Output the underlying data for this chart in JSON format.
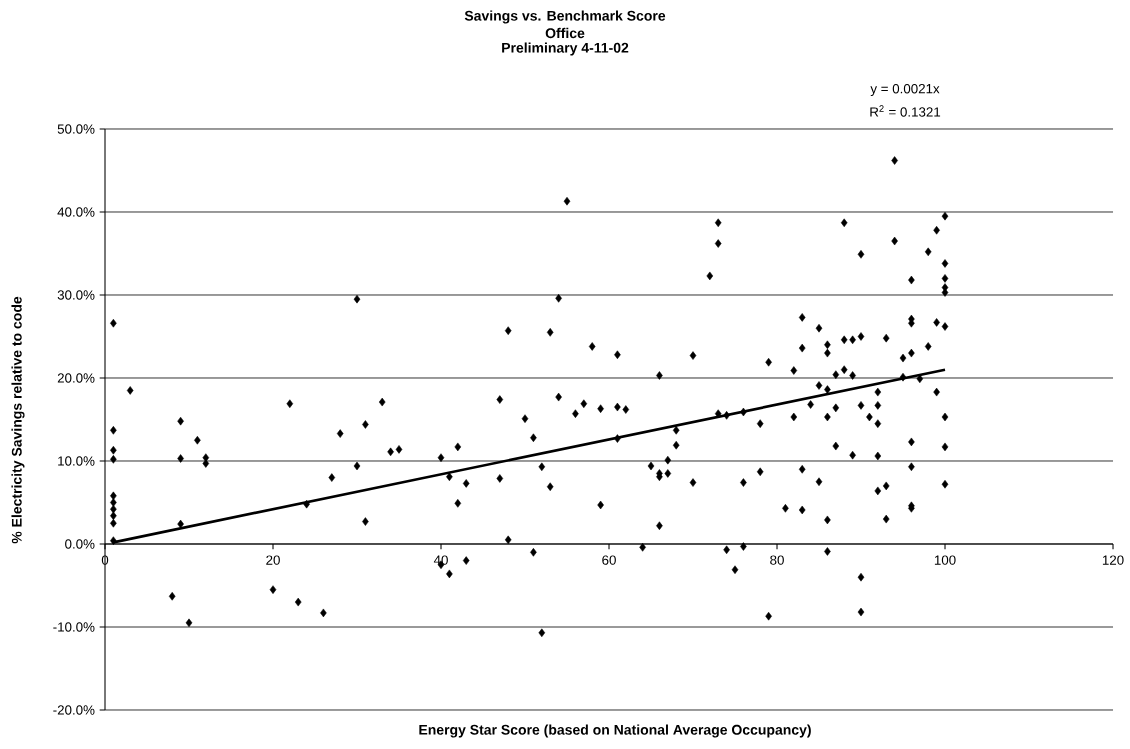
{
  "chart_data": {
    "type": "scatter",
    "title": "Savings vs. Benchmark Score",
    "subtitle": "Office",
    "annotations": [
      "Preliminary 4-11-02",
      "y = 0.0021x",
      "R$^{2}$ = 0.1321"
    ],
    "xlabel": "Energy Star Score (based on National Average Occupancy)",
    "ylabel": "% Electricity Savings relative to code",
    "xlim": [
      0,
      120
    ],
    "xticks": [
      0,
      20,
      40,
      60,
      80,
      100,
      120
    ],
    "ylim": [
      -20,
      50
    ],
    "yticks": [
      {
        "value": -20,
        "label": "-20.0%"
      },
      {
        "value": -10,
        "label": "-10.0%"
      },
      {
        "value": 0,
        "label": "0.0%"
      },
      {
        "value": 10,
        "label": "10.0%"
      },
      {
        "value": 20,
        "label": "20.0%"
      },
      {
        "value": 30,
        "label": "30.0%"
      },
      {
        "value": 40,
        "label": "40.0%"
      },
      {
        "value": 50,
        "label": "50.0%"
      }
    ],
    "grid": "y",
    "legend": false,
    "series": [
      {
        "marker": "diamond",
        "color": "#000000",
        "x": [
          1,
          1,
          1,
          1,
          1,
          1,
          1,
          1,
          1,
          1,
          3,
          8,
          9,
          9,
          9,
          10,
          11,
          12,
          12,
          20,
          22,
          23,
          24,
          26,
          27,
          28,
          30,
          30,
          31,
          31,
          33,
          34,
          35,
          40,
          40,
          41,
          41,
          42,
          42,
          43,
          43,
          47,
          47,
          48,
          48,
          50,
          51,
          51,
          52,
          52,
          53,
          53,
          54,
          54,
          55,
          56,
          57,
          58,
          59,
          59,
          61,
          61,
          61,
          62,
          64,
          65,
          66,
          66,
          66,
          66,
          67,
          67,
          68,
          68,
          70,
          70,
          72,
          73,
          73,
          73,
          74,
          74,
          75,
          76,
          76,
          76,
          78,
          78,
          79,
          79,
          81,
          82,
          82,
          83,
          83,
          83,
          83,
          84,
          85,
          85,
          85,
          86,
          86,
          86,
          86,
          86,
          86,
          87,
          87,
          87,
          88,
          88,
          88,
          89,
          89,
          89,
          90,
          90,
          90,
          90,
          90,
          91,
          92,
          92,
          92,
          92,
          92,
          93,
          93,
          93,
          94,
          94,
          95,
          95,
          96,
          96,
          96,
          96,
          96,
          96,
          96,
          96,
          97,
          98,
          98,
          99,
          99,
          99,
          100,
          100,
          100,
          100,
          100,
          100,
          100,
          100,
          100
        ],
        "values": [
          26.6,
          13.7,
          11.3,
          10.2,
          5.8,
          5.0,
          4.2,
          3.4,
          2.5,
          0.4,
          18.5,
          -6.3,
          14.8,
          10.3,
          2.4,
          -9.5,
          12.5,
          10.4,
          9.7,
          -5.5,
          16.9,
          -7.0,
          4.8,
          -8.3,
          8.0,
          13.3,
          29.5,
          9.4,
          14.4,
          2.7,
          17.1,
          11.1,
          11.4,
          10.4,
          -2.5,
          8.1,
          -3.6,
          11.7,
          4.9,
          7.3,
          -2.0,
          17.4,
          7.9,
          25.7,
          0.5,
          15.1,
          12.8,
          -1.0,
          9.3,
          -10.7,
          25.5,
          6.9,
          29.6,
          17.7,
          41.3,
          15.7,
          16.9,
          23.8,
          16.3,
          4.7,
          22.8,
          16.5,
          12.7,
          16.2,
          -0.4,
          9.4,
          20.3,
          8.5,
          8.1,
          2.2,
          8.5,
          10.1,
          13.7,
          11.9,
          22.7,
          7.4,
          32.3,
          38.7,
          36.2,
          15.7,
          15.5,
          -0.7,
          -3.1,
          15.9,
          7.4,
          -0.3,
          14.5,
          8.7,
          21.9,
          -8.7,
          4.3,
          20.9,
          15.3,
          27.3,
          23.6,
          9.0,
          4.1,
          16.8,
          26.0,
          19.1,
          7.5,
          24.0,
          23.0,
          18.6,
          15.3,
          2.9,
          -0.9,
          20.4,
          16.4,
          11.8,
          38.7,
          24.6,
          21.0,
          24.6,
          20.3,
          10.7,
          34.9,
          25.0,
          16.7,
          -4.0,
          -8.2,
          15.3,
          18.3,
          16.7,
          14.5,
          10.6,
          6.4,
          24.8,
          7.0,
          3.0,
          46.2,
          36.5,
          22.4,
          20.1,
          31.8,
          27.1,
          26.6,
          23.0,
          12.3,
          9.3,
          4.6,
          4.3,
          19.9,
          35.2,
          23.8,
          37.8,
          26.7,
          18.3,
          39.5,
          33.8,
          32.0,
          30.9,
          30.3,
          26.2,
          15.3,
          11.7,
          7.2
        ]
      },
      {
        "type": "line",
        "color": "#000000",
        "x": [
          1,
          100
        ],
        "values": [
          0.2,
          21.0
        ]
      }
    ]
  }
}
